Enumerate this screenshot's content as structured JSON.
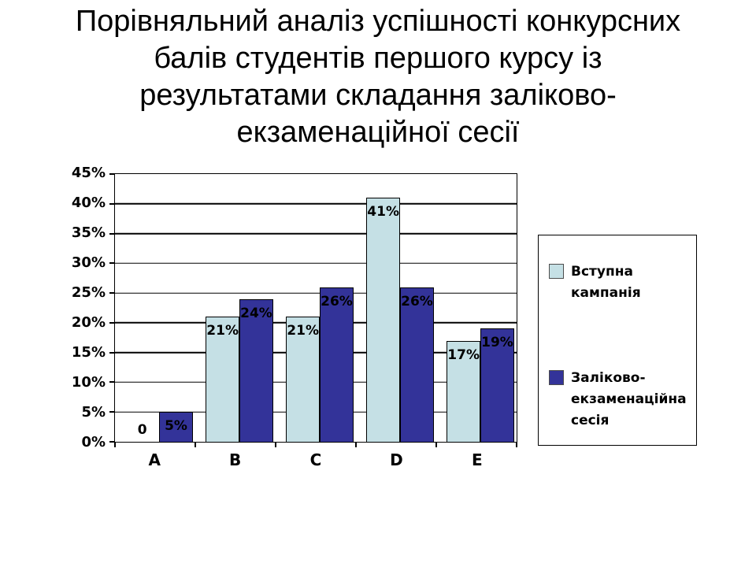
{
  "title": {
    "text": "Порівняльний аналіз успішності конкурсних балів студентів першого курсу із результатами складання заліково-екзаменаційної сесії",
    "lines": [
      "Порівняльний аналіз успішності конкурсних",
      "балів студентів першого курсу із",
      "результатами складання заліково-",
      "екзаменаційної сесії"
    ]
  },
  "chart_data": {
    "type": "bar",
    "title": "Порівняльний аналіз успішності конкурсних балів студентів першого курсу із результатами складання заліково-екзаменаційної сесії",
    "categories": [
      "A",
      "B",
      "C",
      "D",
      "E"
    ],
    "series": [
      {
        "name": "Вступна кампанія",
        "color": "#C5E0E5",
        "values": [
          0,
          21,
          21,
          41,
          17
        ],
        "labels": [
          "0",
          "21%",
          "21%",
          "41%",
          "17%"
        ]
      },
      {
        "name": "Заліково-екзаменаційна сесія",
        "color": "#333399",
        "values": [
          5,
          24,
          26,
          26,
          19
        ],
        "labels": [
          "5%",
          "24%",
          "26%",
          "26%",
          "19%"
        ]
      }
    ],
    "y_axis": {
      "min": 0,
      "max": 45,
      "step": 5,
      "ticks": [
        "0%",
        "5%",
        "10%",
        "15%",
        "20%",
        "25%",
        "30%",
        "35%",
        "40%",
        "45%"
      ]
    },
    "xlabel": "",
    "ylabel": "",
    "legend_position": "right",
    "grid": true,
    "colors": {
      "axis": "#000000",
      "background": "#ffffff",
      "data_label": "#000000"
    }
  }
}
